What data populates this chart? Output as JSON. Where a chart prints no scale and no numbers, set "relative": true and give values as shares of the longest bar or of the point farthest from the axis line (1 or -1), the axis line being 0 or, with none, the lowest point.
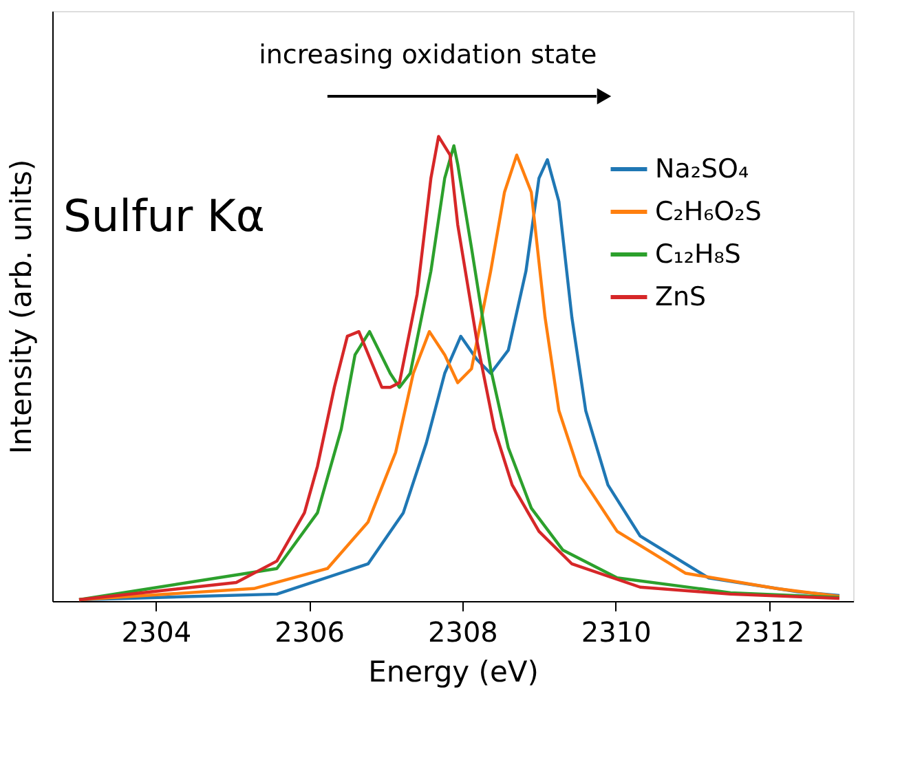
{
  "chart_data": {
    "type": "line",
    "relative": true,
    "xlabel": "Energy (eV)",
    "ylabel": "Intensity (arb. units)",
    "annotations": [
      "increasing oxidation state",
      "Sulfur Kα"
    ],
    "xlim": [
      2302.65,
      2313.1
    ],
    "xticks": [
      2304,
      2306,
      2308,
      2310,
      2312
    ],
    "grid": false,
    "legend": "top right",
    "marker": "none",
    "line_style": "solid",
    "series": [
      {
        "name": "Na₂SO₄",
        "color": "#1f77b4",
        "x": [
          2303.0,
          2305.58,
          2306.77,
          2307.23,
          2307.53,
          2307.77,
          2307.98,
          2308.19,
          2308.37,
          2308.6,
          2308.83,
          2309.0,
          2309.11,
          2309.26,
          2309.43,
          2309.61,
          2309.9,
          2310.32,
          2311.21,
          2312.38,
          2312.92
        ],
        "values": [
          0.003,
          0.015,
          0.08,
          0.19,
          0.34,
          0.49,
          0.57,
          0.52,
          0.49,
          0.54,
          0.71,
          0.91,
          0.95,
          0.86,
          0.61,
          0.41,
          0.25,
          0.14,
          0.05,
          0.02,
          0.012
        ]
      },
      {
        "name": "C₂H₆O₂S",
        "color": "#ff7f0e",
        "x": [
          2303.0,
          2305.28,
          2306.24,
          2306.77,
          2307.13,
          2307.36,
          2307.57,
          2307.77,
          2307.94,
          2308.12,
          2308.37,
          2308.55,
          2308.71,
          2308.9,
          2309.08,
          2309.26,
          2309.54,
          2310.02,
          2310.91,
          2312.1,
          2312.92
        ],
        "values": [
          0.003,
          0.027,
          0.07,
          0.17,
          0.32,
          0.49,
          0.58,
          0.53,
          0.47,
          0.5,
          0.71,
          0.88,
          0.96,
          0.88,
          0.61,
          0.41,
          0.27,
          0.15,
          0.06,
          0.027,
          0.01
        ]
      },
      {
        "name": "C₁₂H₈S",
        "color": "#2ca02c",
        "x": [
          2303.0,
          2305.58,
          2306.11,
          2306.42,
          2306.6,
          2306.79,
          2307.06,
          2307.18,
          2307.32,
          2307.59,
          2307.77,
          2307.89,
          2307.94,
          2308.12,
          2308.37,
          2308.6,
          2308.9,
          2309.31,
          2310.02,
          2311.5,
          2312.92
        ],
        "values": [
          0.003,
          0.07,
          0.19,
          0.37,
          0.53,
          0.58,
          0.49,
          0.46,
          0.49,
          0.71,
          0.91,
          0.98,
          0.94,
          0.76,
          0.5,
          0.33,
          0.2,
          0.11,
          0.05,
          0.018,
          0.008
        ]
      },
      {
        "name": "ZnS",
        "color": "#d62728",
        "x": [
          2303.0,
          2305.05,
          2305.58,
          2305.94,
          2306.11,
          2306.33,
          2306.5,
          2306.65,
          2306.95,
          2307.06,
          2307.18,
          2307.41,
          2307.59,
          2307.69,
          2307.84,
          2307.94,
          2308.19,
          2308.42,
          2308.65,
          2309.0,
          2309.43,
          2310.32,
          2311.5,
          2312.92
        ],
        "values": [
          0.003,
          0.04,
          0.086,
          0.19,
          0.29,
          0.46,
          0.57,
          0.58,
          0.46,
          0.46,
          0.47,
          0.66,
          0.91,
          1.0,
          0.96,
          0.81,
          0.56,
          0.37,
          0.25,
          0.15,
          0.08,
          0.03,
          0.015,
          0.006
        ]
      }
    ]
  }
}
